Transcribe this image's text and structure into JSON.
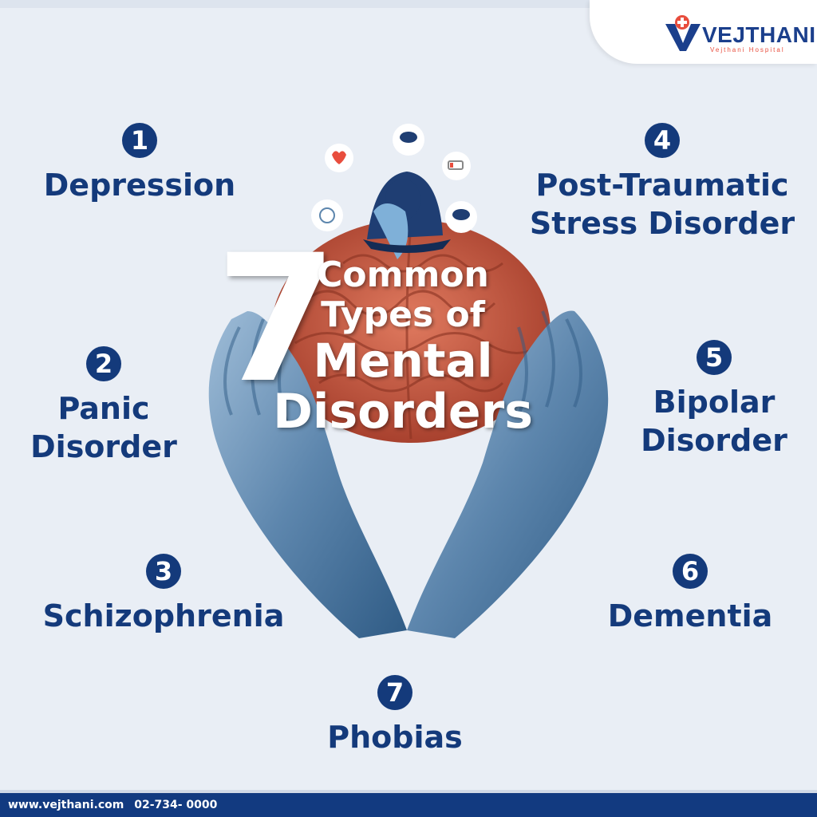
{
  "brand": {
    "name": "VEJTHANI",
    "subtitle": "Vejthani Hospital",
    "logo_icon": "hospital-cross-pin-icon"
  },
  "title": {
    "number": "7",
    "line1": "Common",
    "line2": "Types of",
    "line3": "Mental",
    "line4": "Disorders"
  },
  "items": [
    {
      "number": "1",
      "label": "Depression"
    },
    {
      "number": "2",
      "label": "Panic\nDisorder"
    },
    {
      "number": "3",
      "label": "Schizophrenia"
    },
    {
      "number": "4",
      "label": "Post-Traumatic\nStress Disorder"
    },
    {
      "number": "5",
      "label": "Bipolar\nDisorder"
    },
    {
      "number": "6",
      "label": "Dementia"
    },
    {
      "number": "7",
      "label": "Phobias"
    }
  ],
  "footer": {
    "website": "www.vejthani.com",
    "phone": "02-734- 0000"
  },
  "colors": {
    "background": "#e9eef5",
    "primary": "#143a7b",
    "accent": "#e84d3d",
    "brain": "#c8553d",
    "hands": "#5d86ad"
  }
}
